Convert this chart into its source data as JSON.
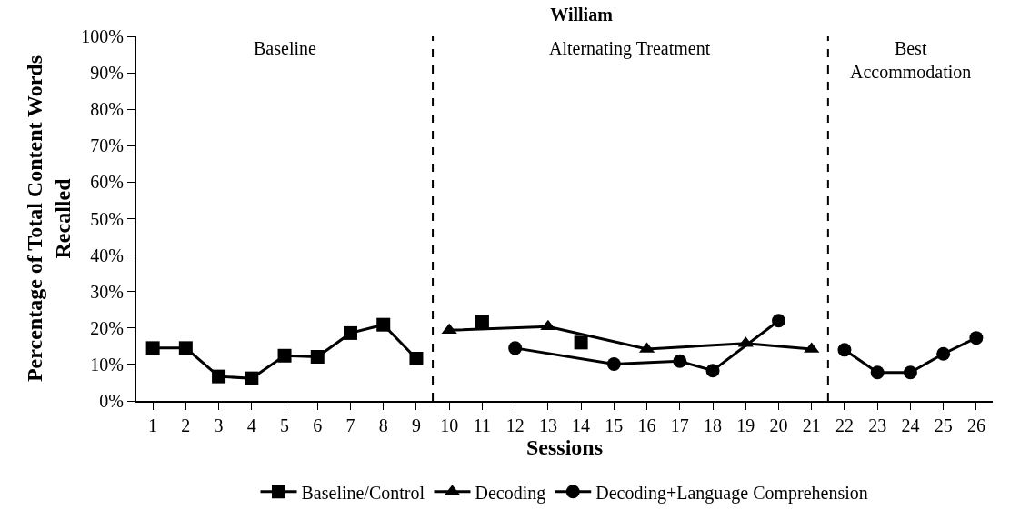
{
  "chart_data": {
    "type": "line",
    "title": "William",
    "xlabel": "Sessions",
    "ylabel": "Percentage of Total Content Words\nRecalled",
    "xlim": [
      0.5,
      26.5
    ],
    "xticks": [
      1,
      2,
      3,
      4,
      5,
      6,
      7,
      8,
      9,
      10,
      11,
      12,
      13,
      14,
      15,
      16,
      17,
      18,
      19,
      20,
      21,
      22,
      23,
      24,
      25,
      26
    ],
    "ylim": [
      0,
      100
    ],
    "yticks": [
      {
        "value": 0,
        "label": "0%"
      },
      {
        "value": 10,
        "label": "10%"
      },
      {
        "value": 20,
        "label": "20%"
      },
      {
        "value": 30,
        "label": "30%"
      },
      {
        "value": 40,
        "label": "40%"
      },
      {
        "value": 50,
        "label": "50%"
      },
      {
        "value": 60,
        "label": "60%"
      },
      {
        "value": 70,
        "label": "70%"
      },
      {
        "value": 80,
        "label": "80%"
      },
      {
        "value": 90,
        "label": "90%"
      },
      {
        "value": 100,
        "label": "100%"
      }
    ],
    "legend": "bottom",
    "line_style": "solid",
    "ref_lines": [
      {
        "axis": "x",
        "value": 9.5,
        "line_style": "dashed",
        "color": "#000000"
      },
      {
        "axis": "x",
        "value": 21.5,
        "line_style": "dashed",
        "color": "#000000"
      }
    ],
    "annotations": [
      "Baseline",
      "Alternating Treatment",
      "Best\nAccommodation"
    ],
    "series": [
      {
        "name": "Baseline/Control",
        "color": "#000000",
        "marker": "square",
        "x": [
          1,
          2,
          3,
          4,
          5,
          6,
          7,
          8,
          9,
          10,
          11,
          12,
          14
        ],
        "values": [
          14.5,
          14.5,
          6.7,
          6.2,
          12.4,
          12.1,
          18.6,
          20.9,
          11.6,
          null,
          21.7,
          null,
          16.0
        ]
      },
      {
        "name": "Decoding",
        "color": "#000000",
        "marker": "triangle",
        "x": [
          10,
          13,
          16,
          19,
          21
        ],
        "values": [
          19.4,
          20.4,
          14.2,
          15.8,
          14.2
        ]
      },
      {
        "name": "Decoding+Language Comprehension",
        "color": "#000000",
        "marker": "circle",
        "x": [
          12,
          15,
          17,
          18,
          20,
          21,
          22,
          23,
          24,
          25,
          26
        ],
        "values": [
          14.5,
          10.1,
          10.9,
          8.3,
          22.0,
          null,
          14.0,
          7.8,
          7.8,
          12.9,
          17.3
        ]
      }
    ]
  }
}
